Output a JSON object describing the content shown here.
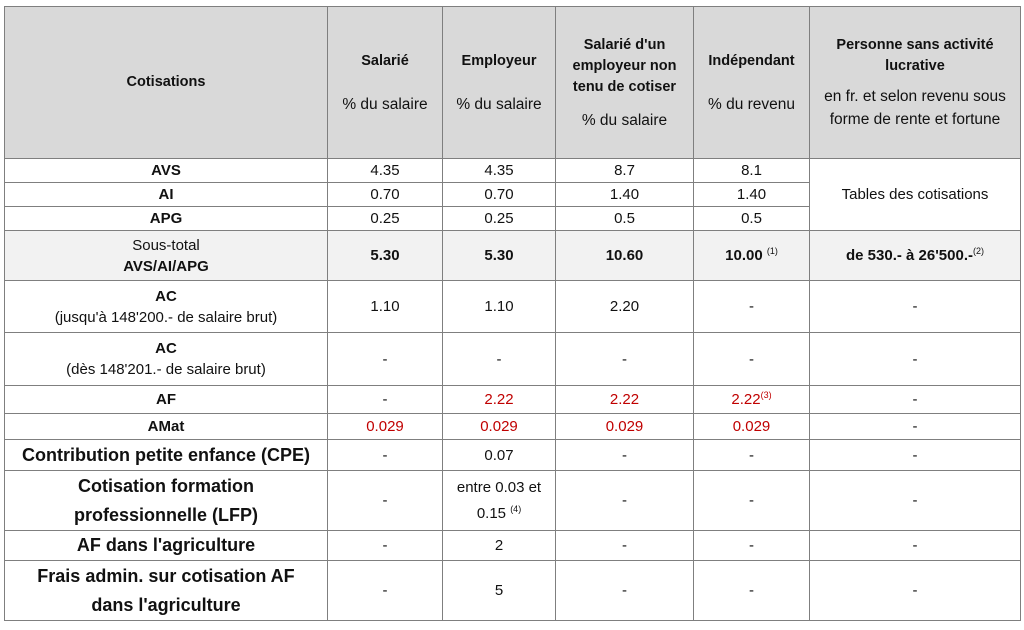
{
  "header": {
    "col0": "Cotisations",
    "col1": "Salarié",
    "col2": "Employeur",
    "col3": "Salarié d'un employeur non tenu de cotiser",
    "col4": "Indépendant",
    "col5": "Personne sans activité lucrative",
    "unit1": "% du salaire",
    "unit2": "% du salaire",
    "unit3": "% du salaire",
    "unit4": "% du revenu",
    "unit5": "en fr. et selon revenu sous forme de rente et fortune"
  },
  "rows": {
    "avs": {
      "label": "AVS",
      "c1": "4.35",
      "c2": "4.35",
      "c3": "8.7",
      "c4": "8.1"
    },
    "ai": {
      "label": "AI",
      "c1": "0.70",
      "c2": "0.70",
      "c3": "1.40",
      "c4": "1.40"
    },
    "apg": {
      "label": "APG",
      "c1": "0.25",
      "c2": "0.25",
      "c3": "0.5",
      "c4": "0.5"
    },
    "tables_note": "Tables des cotisations",
    "subtotal": {
      "label1": "Sous-total",
      "label2": "AVS/AI/APG",
      "c1": "5.30",
      "c2": "5.30",
      "c3": "10.60",
      "c4": "10.00",
      "c4_note": "(1)",
      "c5": "de 530.- à 26'500.-",
      "c5_note": "(2)"
    },
    "ac1": {
      "label1": "AC",
      "label2": "(jusqu'à 148'200.- de salaire brut)",
      "c1": "1.10",
      "c2": "1.10",
      "c3": "2.20",
      "c4": "-",
      "c5": "-"
    },
    "ac2": {
      "label1": "AC",
      "label2": "(dès 148'201.- de salaire brut)",
      "c1": "-",
      "c2": "-",
      "c3": "-",
      "c4": "-",
      "c5": "-"
    },
    "af": {
      "label": "AF",
      "c1": "-",
      "c2": "2.22",
      "c3": "2.22",
      "c4": "2.22",
      "c4_note": "(3)",
      "c5": "-"
    },
    "amat": {
      "label": "AMat",
      "c1": "0.029",
      "c2": "0.029",
      "c3": "0.029",
      "c4": "0.029",
      "c5": "-"
    },
    "cpe": {
      "label": "Contribution petite enfance (CPE)",
      "c1": "-",
      "c2": "0.07",
      "c3": "-",
      "c4": "-",
      "c5": "-"
    },
    "lfp": {
      "label1": "Cotisation formation",
      "label2": "professionnelle (LFP)",
      "c1": "-",
      "c2a": "entre 0.03 et",
      "c2b": "0.15",
      "c2_note": "(4)",
      "c3": "-",
      "c4": "-",
      "c5": "-"
    },
    "afagri": {
      "label": "AF dans l'agriculture",
      "c1": "-",
      "c2": "2",
      "c3": "-",
      "c4": "-",
      "c5": "-"
    },
    "frais": {
      "label1": "Frais admin. sur cotisation AF",
      "label2": "dans l'agriculture",
      "c1": "-",
      "c2": "5",
      "c3": "-",
      "c4": "-",
      "c5": "-"
    }
  },
  "colors": {
    "header_bg": "#d9d9d9",
    "subtotal_bg": "#f2f2f2",
    "red_text": "#c00000",
    "border": "#7f7f7f"
  }
}
